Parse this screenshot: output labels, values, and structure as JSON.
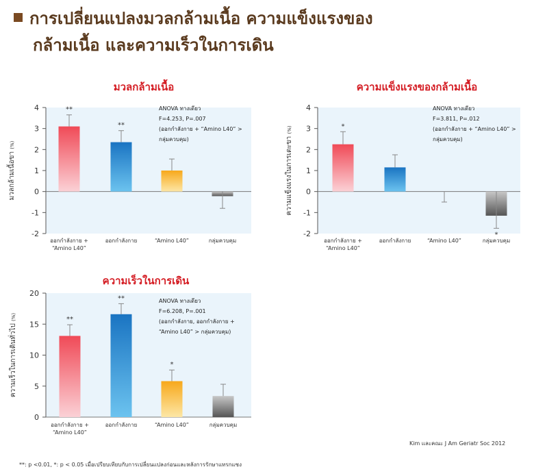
{
  "title": {
    "line1": "การเปลี่ยนแปลงมวลกล้ามเนื้อ ความแข็งแรงของ",
    "line2": "กล้ามเนื้อ และความเร็วในการเดิน"
  },
  "citation": "Kim และคณะ J Am Geriatr Soc 2012",
  "footnote": "**: p <0.01, *: p < 0.05 เมื่อเปรียบเทียบกับการเปลี่ยนแปลงก่อนและหลังการรักษาแทรกแซง",
  "colors": {
    "red": "#e8404c",
    "blue": "#1f7fc7",
    "orange": "#f5a623",
    "gray": "#6f6f6f",
    "plot_bg": "#eaf4fb",
    "title_red": "#d41b22"
  },
  "chart_data": [
    {
      "type": "bar",
      "title": "มวลกล้ามเนื้อ",
      "ylabel": "มวลกล้ามเนื้อขา",
      "yunit": "(%)",
      "ylim": [
        -2,
        4
      ],
      "yticks": [
        4,
        3,
        2,
        1,
        0,
        -1,
        -2
      ],
      "categories": [
        [
          "ออกกำลังกาย +",
          "“Amino L40”"
        ],
        [
          "ออกกำลังกาย"
        ],
        [
          "“Amino L40”"
        ],
        [
          "กลุ่มควบคุม"
        ]
      ],
      "values": [
        3.1,
        2.35,
        1.0,
        -0.22
      ],
      "error_high": [
        3.65,
        2.9,
        1.55,
        0.0
      ],
      "error_low": [
        3.1,
        2.35,
        1.0,
        -0.8
      ],
      "significance": [
        "**",
        "**",
        "",
        ""
      ],
      "annotation": [
        "ANOVA ทางเดียว",
        "F=4.253, P=.007",
        "(ออกกำลังกาย + “Amino L40” >",
        "กลุ่มควบคุม)"
      ]
    },
    {
      "type": "bar",
      "title": "ความแข็งแรงของกล้ามเนื้อ",
      "ylabel": "ความแข็งแรงในการเตะขา",
      "yunit": "(%)",
      "ylim": [
        -2,
        4
      ],
      "yticks": [
        4,
        3,
        2,
        1,
        0,
        -1,
        -2
      ],
      "categories": [
        [
          "ออกกำลังกาย +",
          "“Amino L40”"
        ],
        [
          "ออกกำลังกาย"
        ],
        [
          "“Amino L40”"
        ],
        [
          "กลุ่มควบคุม"
        ]
      ],
      "values": [
        2.25,
        1.15,
        0.0,
        -1.15
      ],
      "error_high": [
        2.85,
        1.75,
        0.0,
        0.0
      ],
      "error_low": [
        2.25,
        1.15,
        -0.5,
        -1.75
      ],
      "significance": [
        "*",
        "",
        "",
        "*"
      ],
      "annotation": [
        "ANOVA ทางเดียว",
        "F=3.811, P=.012",
        "(ออกกำลังกาย + “Amino L40” >",
        "กลุ่มควบคุม)"
      ]
    },
    {
      "type": "bar",
      "title": "ความเร็วในการเดิน",
      "ylabel": "ความเร็วในการเดินทั่วไป",
      "yunit": "(%)",
      "ylim": [
        0,
        20
      ],
      "yticks": [
        20,
        15,
        10,
        5,
        0
      ],
      "categories": [
        [
          "ออกกำลังกาย +",
          "“Amino L40”"
        ],
        [
          "ออกกำลังกาย"
        ],
        [
          "“Amino L40”"
        ],
        [
          "กลุ่มควบคุม"
        ]
      ],
      "values": [
        13.1,
        16.6,
        5.8,
        3.4
      ],
      "error_high": [
        14.9,
        18.3,
        7.6,
        5.3
      ],
      "error_low": [
        13.1,
        16.6,
        5.8,
        3.4
      ],
      "significance": [
        "**",
        "**",
        "*",
        ""
      ],
      "annotation": [
        "ANOVA ทางเดียว",
        "F=6.208, P=.001",
        "(ออกกำลังกาย, ออกกำลังกาย +",
        "“Amino L40” > กลุ่มควบคุม)"
      ]
    }
  ]
}
